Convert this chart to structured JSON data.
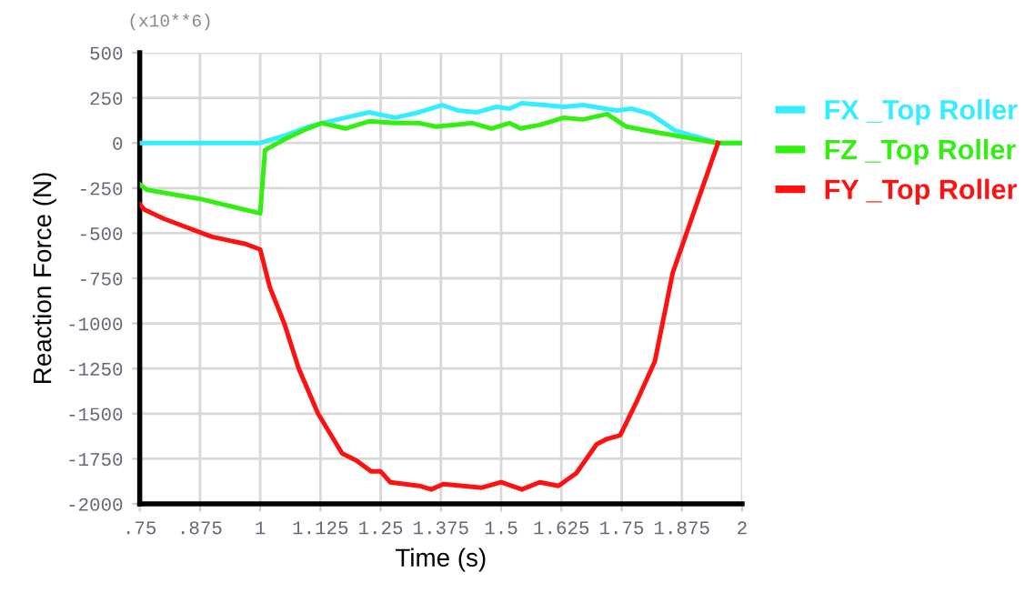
{
  "chart_data": {
    "type": "line",
    "xlabel": "Time (s)",
    "ylabel": "Reaction Force (N)",
    "annotations": [
      "(x10**6)"
    ],
    "xlim": [
      0.75,
      2
    ],
    "xticks": [
      {
        "value": 0.75,
        "label": ".75"
      },
      {
        "value": 0.875,
        "label": ".875"
      },
      1,
      1.125,
      1.25,
      1.375,
      1.5,
      1.625,
      1.75,
      1.875,
      2
    ],
    "ylim": [
      -2000,
      500
    ],
    "yticks": [
      500,
      250,
      0,
      -250,
      -500,
      -750,
      -1000,
      -1250,
      -1500,
      -1750,
      -2000
    ],
    "grid": true,
    "legend": "right",
    "marker": "none",
    "line_style": "solid",
    "series": [
      {
        "name": "FX _Top Roller",
        "color": "#33eeff",
        "x": [
          0.75,
          0.875,
          1.0,
          1.05,
          1.1,
          1.128,
          1.177,
          1.226,
          1.28,
          1.33,
          1.377,
          1.41,
          1.45,
          1.49,
          1.517,
          1.543,
          1.59,
          1.63,
          1.67,
          1.74,
          1.77,
          1.81,
          1.86,
          1.95,
          2.0
        ],
        "values": [
          0,
          0,
          0,
          40,
          90,
          110,
          140,
          170,
          140,
          170,
          210,
          180,
          170,
          200,
          190,
          220,
          210,
          200,
          210,
          180,
          190,
          160,
          70,
          0,
          0
        ]
      },
      {
        "name": "FZ _Top Roller",
        "color": "#33ee11",
        "x": [
          0.75,
          0.765,
          0.875,
          1.0,
          1.01,
          1.05,
          1.09,
          1.128,
          1.177,
          1.226,
          1.28,
          1.33,
          1.365,
          1.44,
          1.48,
          1.517,
          1.54,
          1.58,
          1.63,
          1.67,
          1.72,
          1.76,
          1.82,
          1.95,
          2.0
        ],
        "values": [
          -230,
          -260,
          -310,
          -390,
          -40,
          20,
          70,
          110,
          80,
          120,
          110,
          110,
          90,
          110,
          80,
          110,
          80,
          100,
          140,
          130,
          160,
          90,
          60,
          0,
          0
        ]
      },
      {
        "name": "FY _Top Roller",
        "color": "#ff1111",
        "x": [
          0.75,
          0.76,
          0.8,
          0.9,
          0.97,
          1.0,
          1.02,
          1.05,
          1.08,
          1.12,
          1.17,
          1.2,
          1.23,
          1.25,
          1.27,
          1.3,
          1.33,
          1.355,
          1.38,
          1.42,
          1.46,
          1.5,
          1.543,
          1.58,
          1.619,
          1.656,
          1.698,
          1.72,
          1.747,
          1.78,
          1.819,
          1.856,
          1.95
        ],
        "values": [
          -340,
          -370,
          -420,
          -520,
          -560,
          -590,
          -800,
          -1000,
          -1250,
          -1500,
          -1720,
          -1760,
          -1820,
          -1820,
          -1880,
          -1890,
          -1900,
          -1920,
          -1890,
          -1900,
          -1910,
          -1880,
          -1920,
          -1880,
          -1900,
          -1830,
          -1670,
          -1640,
          -1620,
          -1440,
          -1210,
          -720,
          0
        ]
      }
    ]
  }
}
